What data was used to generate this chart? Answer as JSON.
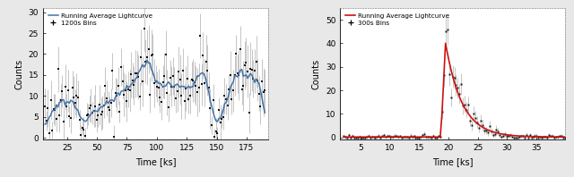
{
  "panel1": {
    "xlabel": "Time [ks]",
    "ylabel": "Counts",
    "xlim": [
      5,
      193
    ],
    "ylim": [
      -0.5,
      31
    ],
    "yticks": [
      0,
      5,
      10,
      15,
      20,
      25,
      30
    ],
    "xticks": [
      25,
      50,
      75,
      100,
      125,
      150,
      175
    ],
    "line_color": "#4472a8",
    "legend_labels": [
      "Running Average Lightcurve",
      "1200s Bins"
    ],
    "ax_bg": "#ffffff",
    "err_color": "#bbbbbb",
    "pt_color": "#111111"
  },
  "panel2": {
    "xlabel": "Time [ks]",
    "ylabel": "Counts",
    "xlim": [
      1.5,
      40
    ],
    "ylim": [
      -1,
      55
    ],
    "yticks": [
      0,
      10,
      20,
      30,
      40,
      50
    ],
    "xticks": [
      5,
      10,
      15,
      20,
      25,
      30,
      35
    ],
    "line_color": "#cc1111",
    "legend_labels": [
      "Running Average Lightcurve",
      "300s Bins"
    ],
    "ax_bg": "#ffffff",
    "err_color": "#bbbbbb",
    "pt_color": "#111111"
  },
  "fig_bg": "#e8e8e8"
}
